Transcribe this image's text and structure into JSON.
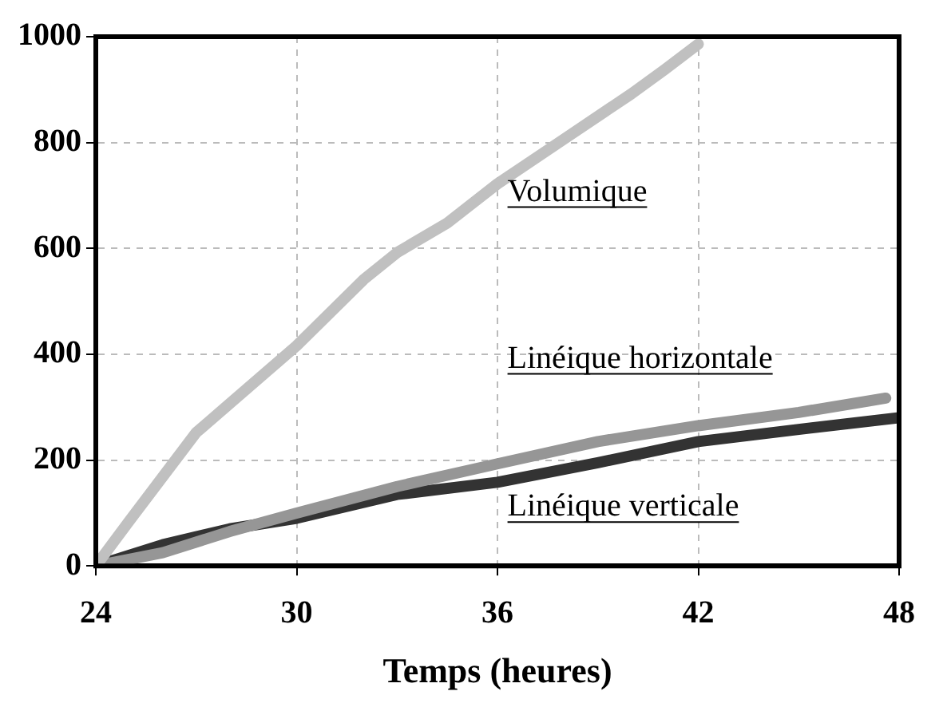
{
  "chart_data": {
    "type": "line",
    "xlabel": "Temps (heures)",
    "xlim": [
      24,
      48
    ],
    "xticks": [
      24,
      30,
      36,
      42,
      48
    ],
    "ylim": [
      0,
      1000
    ],
    "yticks": [
      0,
      200,
      400,
      600,
      800,
      1000
    ],
    "grid": true,
    "legend": false,
    "marker": "none",
    "line_style": "solid",
    "series": [
      {
        "name": "Volumique",
        "color": "#c0c0c0",
        "x": [
          24,
          25,
          27,
          30,
          32,
          33,
          34.5,
          36,
          38,
          40,
          41,
          42
        ],
        "values": [
          0,
          85,
          252,
          416,
          541,
          592,
          648,
          722,
          807,
          892,
          938,
          986
        ]
      },
      {
        "name": "Linéique horizontale",
        "color": "#969696",
        "x": [
          24,
          26,
          28,
          30,
          33,
          36,
          39,
          42,
          45,
          47.6
        ],
        "values": [
          0,
          25,
          65,
          100,
          150,
          193,
          235,
          265,
          290,
          317
        ]
      },
      {
        "name": "Linéique verticale",
        "color": "#333333",
        "x": [
          24,
          26,
          28,
          30,
          33,
          36,
          39,
          42,
          45,
          48
        ],
        "values": [
          0,
          40,
          70,
          90,
          135,
          158,
          195,
          235,
          258,
          280
        ]
      }
    ]
  }
}
